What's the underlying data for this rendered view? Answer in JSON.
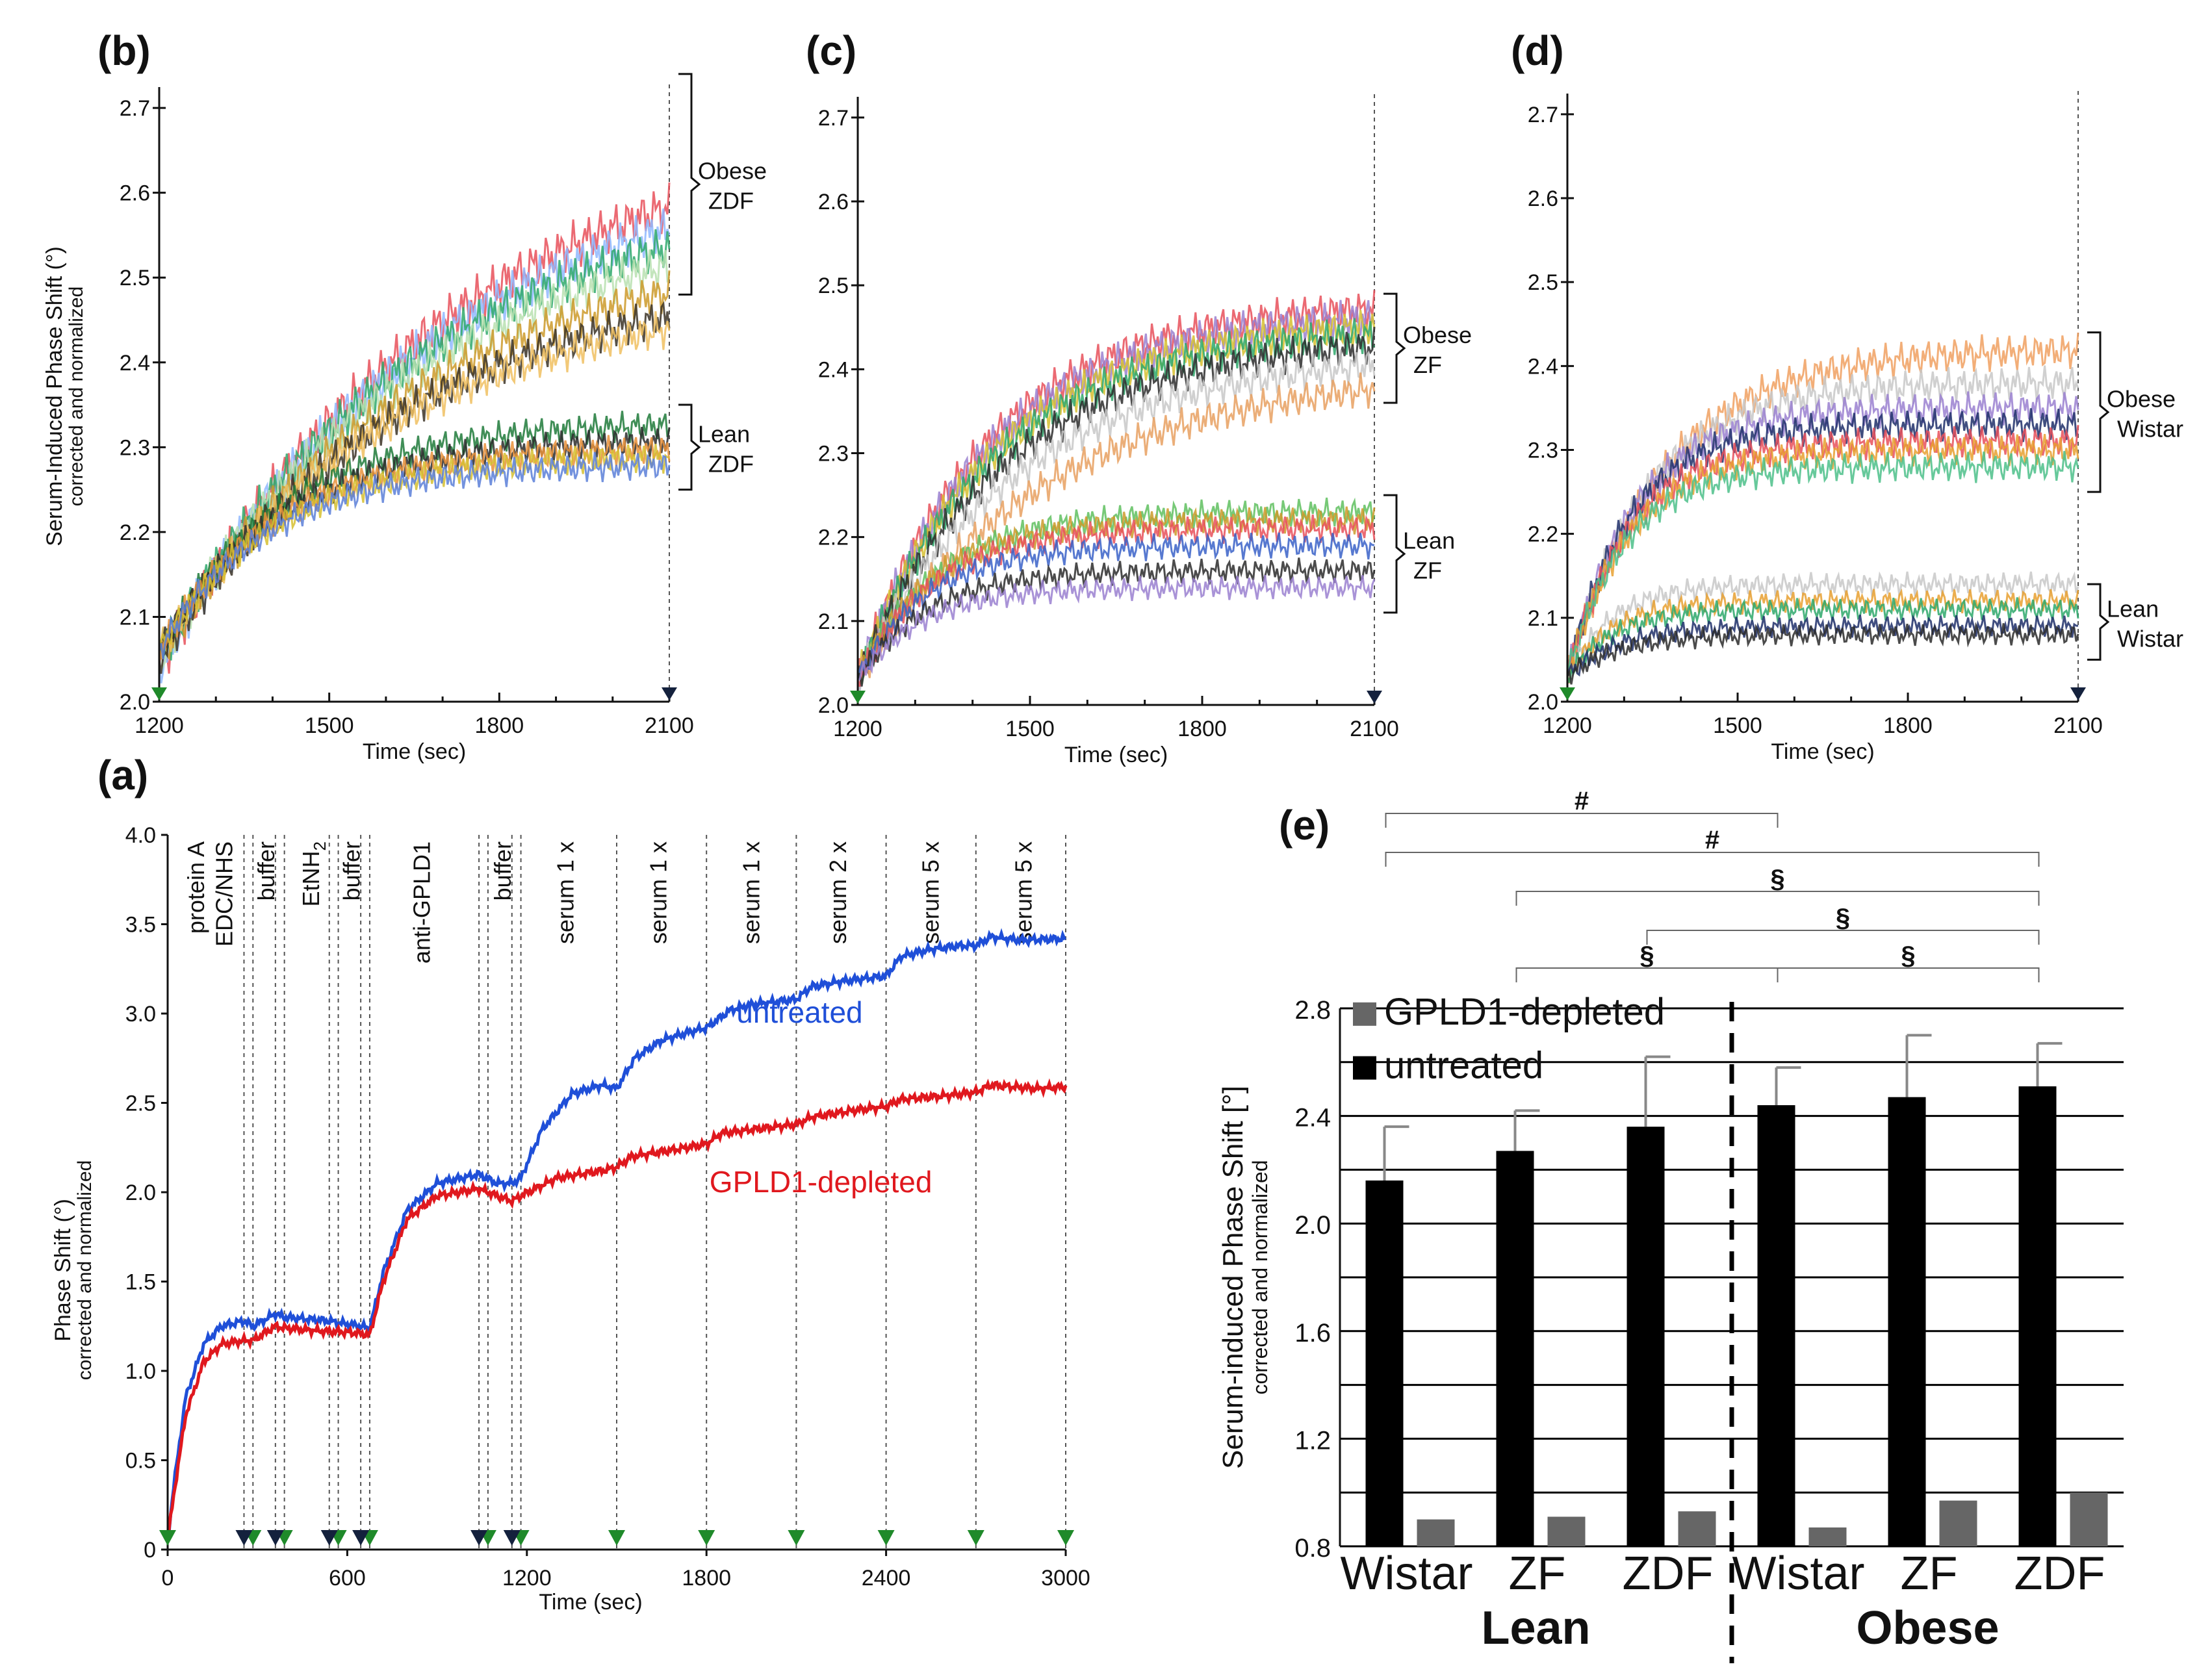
{
  "panel_labels": {
    "a": "(a)",
    "b": "(b)",
    "c": "(c)",
    "d": "(d)",
    "e": "(e)"
  },
  "chart_data": [
    {
      "id": "b",
      "type": "line",
      "xlabel": "Time (sec)",
      "ylabel": "Serum-Induced Phase Shift (°)",
      "ylabel2": "corrected and normalized",
      "xlim": [
        1200,
        2100
      ],
      "ylim": [
        2.0,
        2.72
      ],
      "xticks": [
        1200,
        1500,
        1800,
        2100
      ],
      "yticks": [
        2.0,
        2.1,
        2.2,
        2.3,
        2.4,
        2.5,
        2.6,
        2.7
      ],
      "groups": [
        {
          "line1": "Obese",
          "line2": "ZDF",
          "range": [
            2.48,
            2.74
          ]
        },
        {
          "line1": "Lean",
          "line2": "ZDF",
          "range": [
            2.25,
            2.35
          ]
        }
      ],
      "series": [
        {
          "name": "obese-1",
          "start": 2.04,
          "end": 2.7,
          "tau": 520,
          "color": "#e8505a"
        },
        {
          "name": "obese-2",
          "start": 2.04,
          "end": 2.66,
          "tau": 500,
          "color": "#8fb8ff"
        },
        {
          "name": "obese-3",
          "start": 2.05,
          "end": 2.62,
          "tau": 470,
          "color": "#2ea86b"
        },
        {
          "name": "obese-4",
          "start": 2.05,
          "end": 2.59,
          "tau": 460,
          "color": "#b8e0b0"
        },
        {
          "name": "obese-5",
          "start": 2.05,
          "end": 2.55,
          "tau": 450,
          "color": "#cc9a2a"
        },
        {
          "name": "obese-6",
          "start": 2.05,
          "end": 2.51,
          "tau": 430,
          "color": "#3b3326"
        },
        {
          "name": "obese-7",
          "start": 2.06,
          "end": 2.49,
          "tau": 420,
          "color": "#f0c060"
        },
        {
          "name": "lean-1",
          "start": 2.06,
          "end": 2.33,
          "tau": 220,
          "color": "#1f7a3a"
        },
        {
          "name": "lean-2",
          "start": 2.06,
          "end": 2.31,
          "tau": 210,
          "color": "#2b2b2b"
        },
        {
          "name": "lean-3",
          "start": 2.06,
          "end": 2.3,
          "tau": 200,
          "color": "#e8913a"
        },
        {
          "name": "lean-4",
          "start": 2.06,
          "end": 2.29,
          "tau": 200,
          "color": "#d6c030"
        },
        {
          "name": "lean-5",
          "start": 2.06,
          "end": 2.28,
          "tau": 190,
          "color": "#5a7fd8"
        }
      ]
    },
    {
      "id": "c",
      "type": "line",
      "xlabel": "Time (sec)",
      "ylabel": "",
      "xlim": [
        1200,
        2100
      ],
      "ylim": [
        2.0,
        2.72
      ],
      "xticks": [
        1200,
        1500,
        1800,
        2100
      ],
      "yticks": [
        2.0,
        2.1,
        2.2,
        2.3,
        2.4,
        2.5,
        2.6,
        2.7
      ],
      "groups": [
        {
          "line1": "Obese",
          "line2": "ZF",
          "range": [
            2.36,
            2.49
          ]
        },
        {
          "line1": "Lean",
          "line2": "ZF",
          "range": [
            2.11,
            2.25
          ]
        }
      ],
      "series": [
        {
          "name": "obese-1",
          "start": 2.03,
          "end": 2.48,
          "tau": 230,
          "color": "#e8505a"
        },
        {
          "name": "obese-2",
          "start": 2.03,
          "end": 2.47,
          "tau": 230,
          "color": "#9a80d0"
        },
        {
          "name": "obese-3",
          "start": 2.03,
          "end": 2.46,
          "tau": 240,
          "color": "#d6c030"
        },
        {
          "name": "obese-4",
          "start": 2.03,
          "end": 2.45,
          "tau": 240,
          "color": "#2ea86b"
        },
        {
          "name": "obese-5",
          "start": 2.03,
          "end": 2.44,
          "tau": 260,
          "color": "#2b2b2b"
        },
        {
          "name": "obese-6",
          "start": 2.03,
          "end": 2.42,
          "tau": 280,
          "color": "#c8c8c8"
        },
        {
          "name": "obese-7",
          "start": 2.03,
          "end": 2.4,
          "tau": 330,
          "color": "#e8a060"
        },
        {
          "name": "lean-1",
          "start": 2.03,
          "end": 2.23,
          "tau": 140,
          "color": "#5fbf5f"
        },
        {
          "name": "lean-2",
          "start": 2.03,
          "end": 2.22,
          "tau": 130,
          "color": "#cc9a2a"
        },
        {
          "name": "lean-3",
          "start": 2.03,
          "end": 2.21,
          "tau": 130,
          "color": "#e8505a"
        },
        {
          "name": "lean-4",
          "start": 2.03,
          "end": 2.19,
          "tau": 120,
          "color": "#3a62c8"
        },
        {
          "name": "lean-5",
          "start": 2.03,
          "end": 2.16,
          "tau": 120,
          "color": "#2b2b2b"
        },
        {
          "name": "lean-6",
          "start": 2.03,
          "end": 2.14,
          "tau": 110,
          "color": "#9a80d0"
        }
      ]
    },
    {
      "id": "d",
      "type": "line",
      "xlabel": "Time (sec)",
      "ylabel": "",
      "xlim": [
        1200,
        2100
      ],
      "ylim": [
        2.0,
        2.72
      ],
      "xticks": [
        1200,
        1500,
        1800,
        2100
      ],
      "yticks": [
        2.0,
        2.1,
        2.2,
        2.3,
        2.4,
        2.5,
        2.6,
        2.7
      ],
      "groups": [
        {
          "line1": "Obese",
          "line2": "Wistar",
          "range": [
            2.25,
            2.44
          ]
        },
        {
          "line1": "Lean",
          "line2": "Wistar",
          "range": [
            2.05,
            2.14
          ]
        }
      ],
      "series": [
        {
          "name": "obese-1",
          "start": 2.03,
          "end": 2.42,
          "tau": 170,
          "color": "#f0a060"
        },
        {
          "name": "obese-2",
          "start": 2.03,
          "end": 2.38,
          "tau": 140,
          "color": "#c8c8c8"
        },
        {
          "name": "obese-3",
          "start": 2.03,
          "end": 2.35,
          "tau": 120,
          "color": "#9a80d0"
        },
        {
          "name": "obese-4",
          "start": 2.03,
          "end": 2.33,
          "tau": 110,
          "color": "#1e2f6a"
        },
        {
          "name": "obese-5",
          "start": 2.03,
          "end": 2.31,
          "tau": 110,
          "color": "#e8505a"
        },
        {
          "name": "obese-6",
          "start": 2.03,
          "end": 2.3,
          "tau": 110,
          "color": "#e8a030"
        },
        {
          "name": "obese-7",
          "start": 2.03,
          "end": 2.28,
          "tau": 100,
          "color": "#4cc08a"
        },
        {
          "name": "lean-1",
          "start": 2.03,
          "end": 2.14,
          "tau": 80,
          "color": "#c8c8c8"
        },
        {
          "name": "lean-2",
          "start": 2.03,
          "end": 2.12,
          "tau": 80,
          "color": "#e8a030"
        },
        {
          "name": "lean-3",
          "start": 2.03,
          "end": 2.11,
          "tau": 80,
          "color": "#2ea86b"
        },
        {
          "name": "lean-4",
          "start": 2.03,
          "end": 2.09,
          "tau": 90,
          "color": "#1e2f6a"
        },
        {
          "name": "lean-5",
          "start": 2.03,
          "end": 2.08,
          "tau": 90,
          "color": "#2b2b2b"
        }
      ]
    },
    {
      "id": "a",
      "type": "line",
      "xlabel": "Time (sec)",
      "ylabel": "Phase Shift (°)",
      "ylabel2": "corrected and normalized",
      "xlim": [
        0,
        3000
      ],
      "ylim": [
        0,
        4.0
      ],
      "xticks": [
        0,
        600,
        1200,
        1800,
        2400,
        3000
      ],
      "yticks": [
        0,
        0.5,
        1.0,
        1.5,
        2.0,
        2.5,
        3.0,
        3.5,
        4.0
      ],
      "event_lines": [
        255,
        285,
        360,
        390,
        540,
        570,
        645,
        675,
        1040,
        1070,
        1150,
        1180,
        1500,
        1800,
        2100,
        2400,
        2700,
        3000
      ],
      "green_markers": [
        0,
        285,
        390,
        570,
        675,
        1070,
        1180,
        1500,
        1800,
        2100,
        2400,
        2700,
        3000
      ],
      "black_markers": [
        255,
        360,
        540,
        645,
        1040,
        1150
      ],
      "step_labels": [
        {
          "text": "protein A",
          "x": 95
        },
        {
          "text": "EDC/NHS",
          "x": 190
        },
        {
          "text": "buffer",
          "x": 330
        },
        {
          "text": "EtNH",
          "sub": "2",
          "x": 480
        },
        {
          "text": "buffer",
          "x": 615
        },
        {
          "text": "anti-GPLD1",
          "x": 850
        },
        {
          "text": "buffer",
          "x": 1120
        },
        {
          "text": "serum 1 x",
          "x": 1330
        },
        {
          "text": "serum 1 x",
          "x": 1640
        },
        {
          "text": "serum 1 x",
          "x": 1950
        },
        {
          "text": "serum 2 x",
          "x": 2240
        },
        {
          "text": "serum 5 x",
          "x": 2550
        },
        {
          "text": "serum 5 x",
          "x": 2860
        }
      ],
      "series": [
        {
          "name": "untreated",
          "label_x": 1900,
          "label_y": 2.95,
          "color": "#1f4fd8",
          "t": [
            0,
            20,
            60,
            120,
            180,
            255,
            285,
            360,
            390,
            540,
            570,
            645,
            675,
            720,
            800,
            900,
            1040,
            1100,
            1150,
            1180,
            1250,
            1350,
            1450,
            1500,
            1560,
            1650,
            1750,
            1800,
            1880,
            1950,
            2050,
            2100,
            2150,
            2250,
            2350,
            2400,
            2450,
            2550,
            2650,
            2700,
            2750,
            2850,
            3000
          ],
          "v": [
            0.05,
            0.35,
            0.85,
            1.15,
            1.25,
            1.28,
            1.25,
            1.32,
            1.3,
            1.28,
            1.27,
            1.25,
            1.24,
            1.55,
            1.9,
            2.05,
            2.1,
            2.05,
            2.05,
            2.08,
            2.35,
            2.55,
            2.6,
            2.58,
            2.75,
            2.85,
            2.9,
            2.92,
            3.02,
            3.05,
            3.07,
            3.08,
            3.15,
            3.18,
            3.2,
            3.21,
            3.32,
            3.36,
            3.38,
            3.38,
            3.43,
            3.41,
            3.42
          ]
        },
        {
          "name": "GPLD1-depleted",
          "label_x": 1810,
          "label_y": 2.0,
          "color": "#e0181e",
          "t": [
            0,
            20,
            60,
            120,
            180,
            255,
            285,
            360,
            390,
            540,
            570,
            645,
            675,
            720,
            800,
            900,
            1040,
            1100,
            1150,
            1180,
            1300,
            1450,
            1500,
            1550,
            1700,
            1800,
            1850,
            2000,
            2100,
            2150,
            2300,
            2400,
            2450,
            2600,
            2700,
            2750,
            2900,
            3000
          ],
          "v": [
            0.05,
            0.3,
            0.75,
            1.05,
            1.15,
            1.17,
            1.17,
            1.25,
            1.24,
            1.22,
            1.22,
            1.21,
            1.2,
            1.5,
            1.85,
            1.98,
            2.02,
            1.98,
            1.95,
            1.98,
            2.08,
            2.12,
            2.14,
            2.2,
            2.24,
            2.27,
            2.33,
            2.36,
            2.38,
            2.42,
            2.46,
            2.48,
            2.52,
            2.54,
            2.56,
            2.6,
            2.58,
            2.59
          ]
        }
      ]
    },
    {
      "id": "e",
      "type": "bar",
      "ylabel": "Serum-induced Phase Shift [°]",
      "ylabel2": "corrected and normalized",
      "ylim": [
        0.8,
        2.8
      ],
      "yticks": [
        0.8,
        1.2,
        1.6,
        2.0,
        2.4,
        2.8
      ],
      "categories": [
        "Wistar",
        "ZF",
        "ZDF",
        "Wistar",
        "ZF",
        "ZDF"
      ],
      "groups": [
        "Lean",
        "Obese"
      ],
      "series": [
        {
          "name": "untreated",
          "color": "#000000",
          "values": [
            2.16,
            2.27,
            2.36,
            2.44,
            2.47,
            2.51
          ],
          "errors": [
            0.2,
            0.15,
            0.26,
            0.14,
            0.23,
            0.16
          ]
        },
        {
          "name": "GPLD1-depleted",
          "color": "#666666",
          "values": [
            0.9,
            0.91,
            0.93,
            0.87,
            0.97,
            1.0
          ],
          "errors": [
            0,
            0,
            0,
            0,
            0,
            0
          ]
        }
      ],
      "legend": [
        "GPLD1-depleted",
        "untreated"
      ],
      "significance": [
        {
          "from": 0,
          "to": 3,
          "symbol": "#"
        },
        {
          "from": 0,
          "to": 5,
          "symbol": "#"
        },
        {
          "from": 1,
          "to": 5,
          "symbol": "§"
        },
        {
          "from": 2,
          "to": 5,
          "symbol": "§"
        },
        {
          "from": 1,
          "to": 3,
          "symbol": "§"
        },
        {
          "from": 3,
          "to": 5,
          "symbol": "§"
        }
      ]
    }
  ]
}
